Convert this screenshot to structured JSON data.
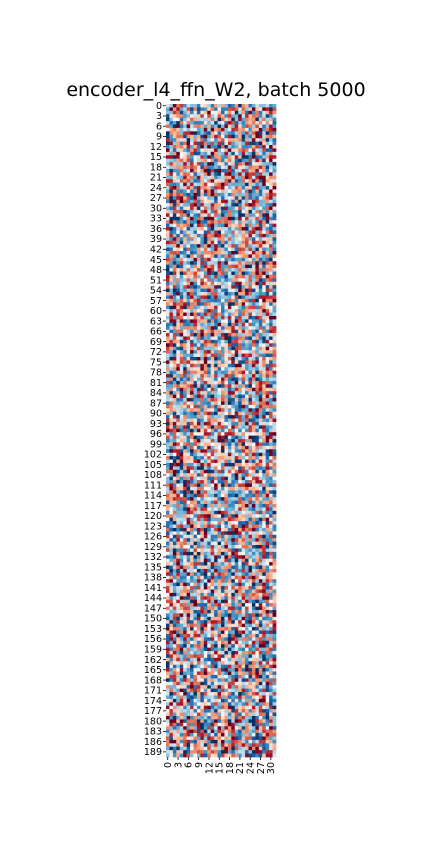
{
  "chart_data": {
    "type": "heatmap",
    "title": "encoder_l4_ffn_W2, batch 5000",
    "xlabel": "",
    "ylabel": "",
    "n_rows": 191,
    "n_cols": 32,
    "x_tick_labels": [
      "0",
      "3",
      "6",
      "9",
      "12",
      "15",
      "18",
      "21",
      "24",
      "27",
      "30"
    ],
    "x_tick_step": 3,
    "y_tick_labels": [
      "0",
      "3",
      "6",
      "9",
      "12",
      "15",
      "18",
      "21",
      "24",
      "27",
      "30",
      "33",
      "36",
      "39",
      "42",
      "45",
      "48",
      "51",
      "54",
      "57",
      "60",
      "63",
      "66",
      "69",
      "72",
      "75",
      "78",
      "81",
      "84",
      "87",
      "90",
      "93",
      "96",
      "99",
      "102",
      "105",
      "108",
      "111",
      "114",
      "117",
      "120",
      "123",
      "126",
      "129",
      "132",
      "135",
      "138",
      "141",
      "144",
      "147",
      "150",
      "153",
      "156",
      "159",
      "162",
      "165",
      "168",
      "171",
      "174",
      "177",
      "180",
      "183",
      "186",
      "189"
    ],
    "y_tick_step": 3,
    "colormap": "RdBu_r",
    "value_range": [
      -1,
      1
    ],
    "colorbar": false,
    "grid": false,
    "values_note": ""
  }
}
